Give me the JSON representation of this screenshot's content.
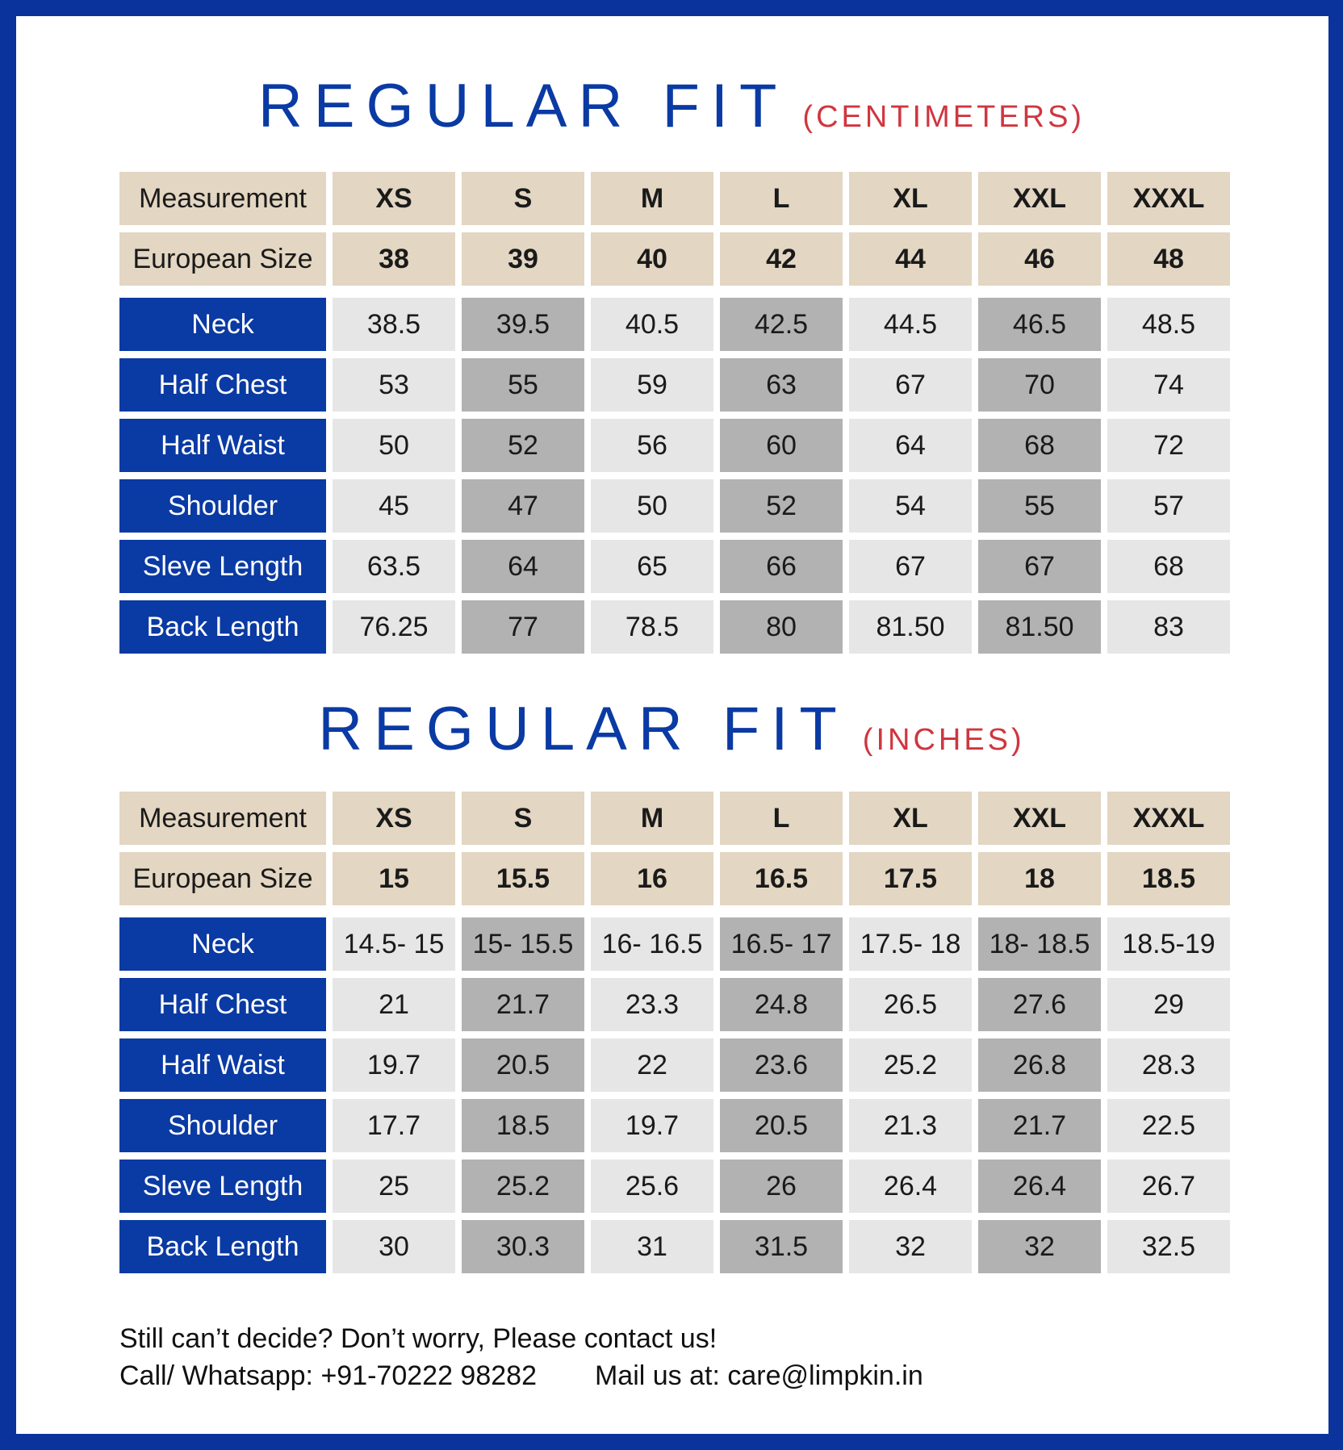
{
  "colors": {
    "border": "#0a349c",
    "accent_blue": "#0a3aa3",
    "unit_red": "#d0363f",
    "beige": "#e3d6c2",
    "light_gray": "#e6e6e6",
    "dark_gray": "#b2b2b2"
  },
  "tables": [
    {
      "title": "REGULAR FIT",
      "unit": "(CENTIMETERS)",
      "header": {
        "label": "Measurement",
        "sizes": [
          "XS",
          "S",
          "M",
          "L",
          "XL",
          "XXL",
          "XXXL"
        ]
      },
      "european": {
        "label": "European Size",
        "values": [
          "38",
          "39",
          "40",
          "42",
          "44",
          "46",
          "48"
        ]
      },
      "rows": [
        {
          "label": "Neck",
          "values": [
            "38.5",
            "39.5",
            "40.5",
            "42.5",
            "44.5",
            "46.5",
            "48.5"
          ]
        },
        {
          "label": "Half Chest",
          "values": [
            "53",
            "55",
            "59",
            "63",
            "67",
            "70",
            "74"
          ]
        },
        {
          "label": "Half Waist",
          "values": [
            "50",
            "52",
            "56",
            "60",
            "64",
            "68",
            "72"
          ]
        },
        {
          "label": "Shoulder",
          "values": [
            "45",
            "47",
            "50",
            "52",
            "54",
            "55",
            "57"
          ]
        },
        {
          "label": "Sleve Length",
          "values": [
            "63.5",
            "64",
            "65",
            "66",
            "67",
            "67",
            "68"
          ]
        },
        {
          "label": "Back Length",
          "values": [
            "76.25",
            "77",
            "78.5",
            "80",
            "81.50",
            "81.50",
            "83"
          ]
        }
      ]
    },
    {
      "title": "REGULAR FIT",
      "unit": "(INCHES)",
      "header": {
        "label": "Measurement",
        "sizes": [
          "XS",
          "S",
          "M",
          "L",
          "XL",
          "XXL",
          "XXXL"
        ]
      },
      "european": {
        "label": "European Size",
        "values": [
          "15",
          "15.5",
          "16",
          "16.5",
          "17.5",
          "18",
          "18.5"
        ]
      },
      "rows": [
        {
          "label": "Neck",
          "values": [
            "14.5- 15",
            "15- 15.5",
            "16- 16.5",
            "16.5- 17",
            "17.5- 18",
            "18- 18.5",
            "18.5-19"
          ]
        },
        {
          "label": "Half Chest",
          "values": [
            "21",
            "21.7",
            "23.3",
            "24.8",
            "26.5",
            "27.6",
            "29"
          ]
        },
        {
          "label": "Half Waist",
          "values": [
            "19.7",
            "20.5",
            "22",
            "23.6",
            "25.2",
            "26.8",
            "28.3"
          ]
        },
        {
          "label": "Shoulder",
          "values": [
            "17.7",
            "18.5",
            "19.7",
            "20.5",
            "21.3",
            "21.7",
            "22.5"
          ]
        },
        {
          "label": "Sleve Length",
          "values": [
            "25",
            "25.2",
            "25.6",
            "26",
            "26.4",
            "26.4",
            "26.7"
          ]
        },
        {
          "label": "Back Length",
          "values": [
            "30",
            "30.3",
            "31",
            "31.5",
            "32",
            "32",
            "32.5"
          ]
        }
      ]
    }
  ],
  "footer": {
    "line1": "Still can’t decide? Don’t worry, Please contact us!",
    "phone": "Call/ Whatsapp: +91-70222 98282",
    "email": "Mail us at: care@limpkin.in"
  }
}
